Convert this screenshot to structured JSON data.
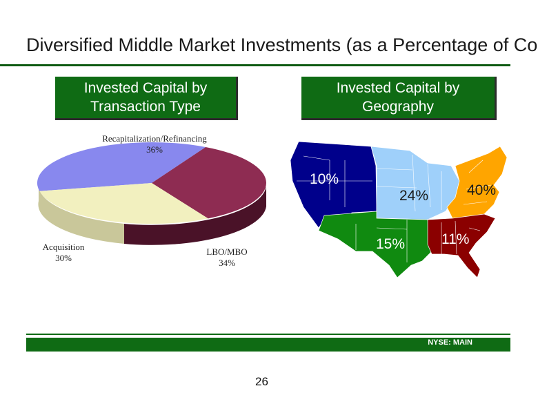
{
  "slide": {
    "title": "Diversified Middle Market Investments (as a Percentage of Cost)",
    "footer": "NYSE:  MAIN",
    "page_number": "26"
  },
  "left_panel": {
    "header_line1": "Invested Capital by",
    "header_line2": "Transaction Type"
  },
  "right_panel": {
    "header_line1": "Invested Capital by",
    "header_line2": "Geography"
  },
  "chart_data": [
    {
      "type": "pie",
      "style": "3d",
      "slices": [
        {
          "label": "Recapitalization/Refinancing",
          "value": 36,
          "value_label": "36%",
          "color": "#8888ee"
        },
        {
          "label": "LBO/MBO",
          "value": 34,
          "value_label": "34%",
          "color": "#8e2c52"
        },
        {
          "label": "Acquisition",
          "value": 30,
          "value_label": "30%",
          "color": "#f2f0bf"
        }
      ]
    },
    {
      "type": "map",
      "regions": [
        {
          "region": "West",
          "value": 10,
          "value_label": "10%",
          "color": "#00008b"
        },
        {
          "region": "Midwest",
          "value": 24,
          "value_label": "24%",
          "color": "#9fd0fa"
        },
        {
          "region": "Northeast",
          "value": 40,
          "value_label": "40%",
          "color": "#ffa500"
        },
        {
          "region": "Southwest",
          "value": 15,
          "value_label": "15%",
          "color": "#108a10"
        },
        {
          "region": "Southeast",
          "value": 11,
          "value_label": "11%",
          "color": "#8b0000"
        }
      ]
    }
  ]
}
